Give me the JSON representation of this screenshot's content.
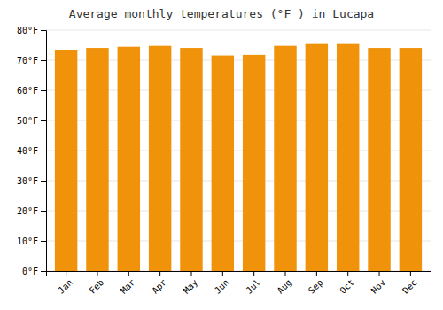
{
  "chart_data": {
    "type": "bar",
    "title": "Average monthly temperatures (°F ) in Lucapa",
    "categories": [
      "Jan",
      "Feb",
      "Mar",
      "Apr",
      "May",
      "Jun",
      "Jul",
      "Aug",
      "Sep",
      "Oct",
      "Nov",
      "Dec"
    ],
    "values": [
      73.4,
      74.1,
      74.5,
      74.8,
      74.1,
      71.6,
      71.8,
      74.8,
      75.4,
      75.4,
      74.1,
      74.1
    ],
    "color": "#F0920A",
    "ylim": [
      0,
      80
    ],
    "yticks": [
      {
        "value": 0,
        "label": "0°F"
      },
      {
        "value": 10,
        "label": "10°F"
      },
      {
        "value": 20,
        "label": "20°F"
      },
      {
        "value": 30,
        "label": "30°F"
      },
      {
        "value": 40,
        "label": "40°F"
      },
      {
        "value": 50,
        "label": "50°F"
      },
      {
        "value": 60,
        "label": "60°F"
      },
      {
        "value": 70,
        "label": "70°F"
      },
      {
        "value": 80,
        "label": "80°F"
      }
    ],
    "grid": true
  }
}
